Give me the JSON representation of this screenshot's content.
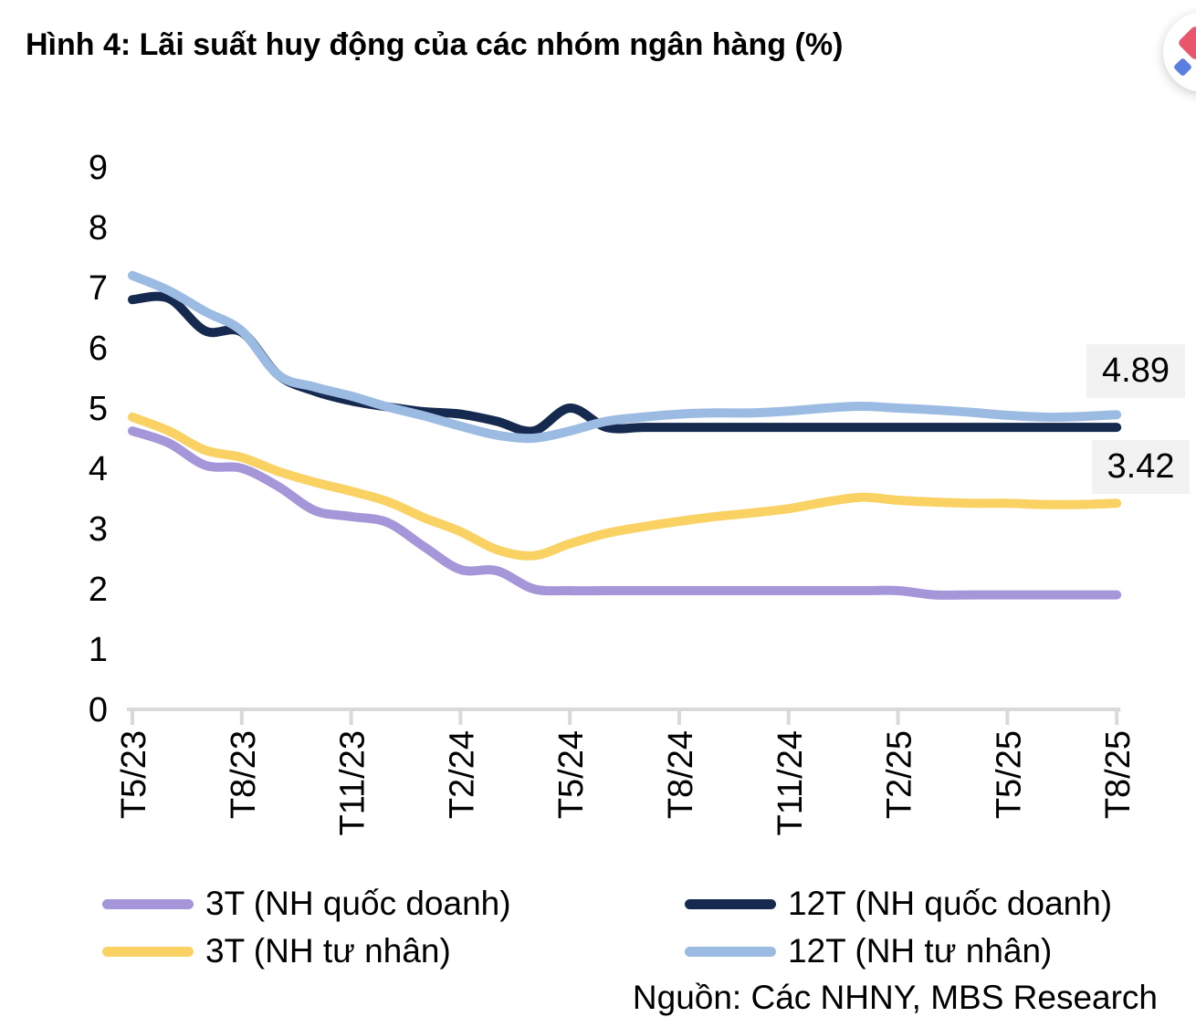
{
  "title": "Hình 4: Lãi suất huy động của các nhóm ngân hàng (%)",
  "source": "Nguồn: Các NHNY, MBS Research",
  "fab": {
    "icon": "pink-diamond-logo-icon"
  },
  "chart_data": {
    "type": "line",
    "title": "Hình 4: Lãi suất huy động của các nhóm ngân hàng (%)",
    "xlabel": "",
    "ylabel": "",
    "ylim": [
      0,
      9
    ],
    "y_ticks": [
      0,
      1,
      2,
      3,
      4,
      5,
      6,
      7,
      8,
      9
    ],
    "x_tick_labels": [
      "T5/23",
      "T8/23",
      "T11/23",
      "T2/24",
      "T5/24",
      "T8/24",
      "T11/24",
      "T2/25",
      "T5/25",
      "T8/25"
    ],
    "months": [
      "T5/23",
      "T6/23",
      "T7/23",
      "T8/23",
      "T9/23",
      "T10/23",
      "T11/23",
      "T12/23",
      "T1/24",
      "T2/24",
      "T3/24",
      "T4/24",
      "T5/24",
      "T6/24",
      "T7/24",
      "T8/24",
      "T9/24",
      "T10/24",
      "T11/24",
      "T12/24",
      "T1/25",
      "T2/25",
      "T3/25",
      "T4/25",
      "T5/25",
      "T6/25",
      "T7/25",
      "T8/25"
    ],
    "grid": false,
    "legend_position": "bottom",
    "axis_color": "#d9d9d9",
    "label_box_bg": "#f2f2f2",
    "series": [
      {
        "name": "3T (NH quốc doanh)",
        "color": "#a496d8",
        "values": [
          4.62,
          4.42,
          4.05,
          4.0,
          3.7,
          3.3,
          3.2,
          3.1,
          2.7,
          2.32,
          2.3,
          2.0,
          1.97,
          1.97,
          1.97,
          1.97,
          1.97,
          1.97,
          1.97,
          1.97,
          1.97,
          1.97,
          1.9,
          1.9,
          1.9,
          1.9,
          1.9,
          1.9
        ]
      },
      {
        "name": "12T (NH quốc doanh)",
        "color": "#16294e",
        "values": [
          6.8,
          6.82,
          6.28,
          6.26,
          5.55,
          5.28,
          5.12,
          5.02,
          4.94,
          4.9,
          4.78,
          4.62,
          5.0,
          4.68,
          4.68,
          4.68,
          4.68,
          4.68,
          4.68,
          4.68,
          4.68,
          4.68,
          4.68,
          4.68,
          4.68,
          4.68,
          4.68,
          4.68
        ]
      },
      {
        "name": "3T (NH tư nhân)",
        "color": "#fad264",
        "values": [
          4.85,
          4.62,
          4.3,
          4.18,
          3.95,
          3.77,
          3.62,
          3.45,
          3.18,
          2.95,
          2.65,
          2.55,
          2.75,
          2.92,
          3.03,
          3.12,
          3.2,
          3.26,
          3.33,
          3.44,
          3.52,
          3.47,
          3.44,
          3.42,
          3.42,
          3.4,
          3.4,
          3.42
        ]
      },
      {
        "name": "12T (NH tư nhân)",
        "color": "#9cbbe2",
        "values": [
          7.2,
          6.95,
          6.6,
          6.28,
          5.55,
          5.35,
          5.2,
          5.02,
          4.87,
          4.7,
          4.55,
          4.5,
          4.62,
          4.78,
          4.85,
          4.9,
          4.92,
          4.92,
          4.95,
          5.0,
          5.03,
          5.0,
          4.97,
          4.93,
          4.88,
          4.85,
          4.86,
          4.89
        ]
      }
    ],
    "annotations": [
      {
        "label": "4.89",
        "series": "12T (NH tư nhân)"
      },
      {
        "label": "3.42",
        "series": "3T (NH tư nhân)"
      }
    ]
  }
}
